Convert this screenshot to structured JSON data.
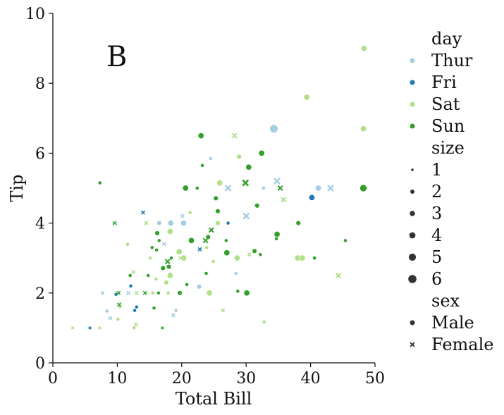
{
  "chart_data": {
    "type": "scatter",
    "panel_label": "B",
    "xlabel": "Total Bill",
    "ylabel": "Tip",
    "xlim": [
      0,
      50
    ],
    "ylim": [
      0,
      10
    ],
    "xticks": [
      "0",
      "10",
      "20",
      "30",
      "40",
      "50"
    ],
    "yticks": [
      "0",
      "2",
      "4",
      "6",
      "8",
      "10"
    ],
    "legend": {
      "placement": "right-outside",
      "hue_title": "day",
      "hue": [
        {
          "label": "Thur",
          "color": "#a6cee3"
        },
        {
          "label": "Fri",
          "color": "#1f78b4"
        },
        {
          "label": "Sat",
          "color": "#b2df8a"
        },
        {
          "label": "Sun",
          "color": "#33a02c"
        }
      ],
      "size_title": "size",
      "sizes": [
        "1",
        "2",
        "3",
        "4",
        "5",
        "6"
      ],
      "style_title": "sex",
      "styles": [
        {
          "label": "Male",
          "marker": "circle"
        },
        {
          "label": "Female",
          "marker": "x"
        }
      ]
    },
    "points": [
      {
        "x": 48.3,
        "y": 9.0,
        "day": "Sat",
        "size": 4,
        "sex": "Male"
      },
      {
        "x": 39.4,
        "y": 7.6,
        "day": "Sat",
        "size": 4,
        "sex": "Male"
      },
      {
        "x": 48.2,
        "y": 6.7,
        "day": "Sat",
        "size": 4,
        "sex": "Male"
      },
      {
        "x": 34.3,
        "y": 6.7,
        "day": "Thur",
        "size": 6,
        "sex": "Male"
      },
      {
        "x": 23.0,
        "y": 6.5,
        "day": "Sun",
        "size": 4,
        "sex": "Male"
      },
      {
        "x": 28.2,
        "y": 6.5,
        "day": "Sat",
        "size": 3,
        "sex": "Female"
      },
      {
        "x": 32.4,
        "y": 6.0,
        "day": "Sun",
        "size": 4,
        "sex": "Male"
      },
      {
        "x": 28.9,
        "y": 5.9,
        "day": "Sat",
        "size": 3,
        "sex": "Male"
      },
      {
        "x": 24.5,
        "y": 5.85,
        "day": "Thur",
        "size": 2,
        "sex": "Male"
      },
      {
        "x": 23.2,
        "y": 5.65,
        "day": "Sun",
        "size": 2,
        "sex": "Male"
      },
      {
        "x": 30.4,
        "y": 5.6,
        "day": "Sun",
        "size": 4,
        "sex": "Male"
      },
      {
        "x": 34.8,
        "y": 5.2,
        "day": "Thur",
        "size": 4,
        "sex": "Female"
      },
      {
        "x": 7.3,
        "y": 5.15,
        "day": "Sun",
        "size": 2,
        "sex": "Male"
      },
      {
        "x": 25.9,
        "y": 5.15,
        "day": "Sat",
        "size": 4,
        "sex": "Male"
      },
      {
        "x": 29.9,
        "y": 5.15,
        "day": "Sun",
        "size": 4,
        "sex": "Female"
      },
      {
        "x": 20.6,
        "y": 5.0,
        "day": "Sun",
        "size": 4,
        "sex": "Male"
      },
      {
        "x": 22.4,
        "y": 5.0,
        "day": "Sun",
        "size": 2,
        "sex": "Male"
      },
      {
        "x": 27.2,
        "y": 5.0,
        "day": "Thur",
        "size": 4,
        "sex": "Female"
      },
      {
        "x": 32.7,
        "y": 5.0,
        "day": "Thur",
        "size": 2,
        "sex": "Male"
      },
      {
        "x": 35.3,
        "y": 5.0,
        "day": "Sun",
        "size": 3,
        "sex": "Female"
      },
      {
        "x": 41.2,
        "y": 5.0,
        "day": "Thur",
        "size": 4,
        "sex": "Male"
      },
      {
        "x": 43.1,
        "y": 5.0,
        "day": "Thur",
        "size": 4,
        "sex": "Female"
      },
      {
        "x": 48.2,
        "y": 5.0,
        "day": "Sun",
        "size": 5,
        "sex": "Male"
      },
      {
        "x": 40.2,
        "y": 4.73,
        "day": "Fri",
        "size": 4,
        "sex": "Male"
      },
      {
        "x": 25.3,
        "y": 4.71,
        "day": "Sun",
        "size": 3,
        "sex": "Male"
      },
      {
        "x": 35.8,
        "y": 4.67,
        "day": "Sat",
        "size": 3,
        "sex": "Female"
      },
      {
        "x": 31.7,
        "y": 4.5,
        "day": "Sun",
        "size": 3,
        "sex": "Male"
      },
      {
        "x": 25.6,
        "y": 4.34,
        "day": "Sun",
        "size": 3,
        "sex": "Male"
      },
      {
        "x": 14.0,
        "y": 4.3,
        "day": "Fri",
        "size": 2,
        "sex": "Female"
      },
      {
        "x": 21.3,
        "y": 4.3,
        "day": "Sat",
        "size": 2,
        "sex": "Male"
      },
      {
        "x": 30.0,
        "y": 4.2,
        "day": "Thur",
        "size": 4,
        "sex": "Female"
      },
      {
        "x": 20.1,
        "y": 4.2,
        "day": "Thur",
        "size": 2,
        "sex": "Female"
      },
      {
        "x": 9.6,
        "y": 4.0,
        "day": "Sun",
        "size": 2,
        "sex": "Female"
      },
      {
        "x": 14.5,
        "y": 4.0,
        "day": "Sat",
        "size": 2,
        "sex": "Female"
      },
      {
        "x": 16.5,
        "y": 4.0,
        "day": "Thur",
        "size": 3,
        "sex": "Male"
      },
      {
        "x": 18.3,
        "y": 4.0,
        "day": "Thur",
        "size": 4,
        "sex": "Male"
      },
      {
        "x": 20.3,
        "y": 4.0,
        "day": "Thur",
        "size": 4,
        "sex": "Male"
      },
      {
        "x": 25.6,
        "y": 4.0,
        "day": "Sat",
        "size": 3,
        "sex": "Male"
      },
      {
        "x": 27.2,
        "y": 4.0,
        "day": "Fri",
        "size": 2,
        "sex": "Male"
      },
      {
        "x": 38.1,
        "y": 4.0,
        "day": "Sun",
        "size": 3,
        "sex": "Male"
      },
      {
        "x": 24.6,
        "y": 3.8,
        "day": "Sun",
        "size": 3,
        "sex": "Female"
      },
      {
        "x": 18.2,
        "y": 3.76,
        "day": "Sat",
        "size": 4,
        "sex": "Male"
      },
      {
        "x": 16.2,
        "y": 3.71,
        "day": "Sun",
        "size": 3,
        "sex": "Male"
      },
      {
        "x": 34.8,
        "y": 3.68,
        "day": "Sun",
        "size": 4,
        "sex": "Male"
      },
      {
        "x": 24.1,
        "y": 3.6,
        "day": "Sun",
        "size": 3,
        "sex": "Male"
      },
      {
        "x": 34.7,
        "y": 3.55,
        "day": "Sun",
        "size": 2,
        "sex": "Male"
      },
      {
        "x": 23.7,
        "y": 3.5,
        "day": "Sun",
        "size": 3,
        "sex": "Female"
      },
      {
        "x": 16.5,
        "y": 3.5,
        "day": "Sun",
        "size": 2,
        "sex": "Male"
      },
      {
        "x": 21.5,
        "y": 3.5,
        "day": "Sun",
        "size": 4,
        "sex": "Male"
      },
      {
        "x": 26.9,
        "y": 3.5,
        "day": "Sun",
        "size": 2,
        "sex": "Male"
      },
      {
        "x": 45.4,
        "y": 3.5,
        "day": "Sun",
        "size": 2,
        "sex": "Male"
      },
      {
        "x": 17.3,
        "y": 3.4,
        "day": "Thur",
        "size": 2,
        "sex": "Female"
      },
      {
        "x": 11.6,
        "y": 3.39,
        "day": "Sat",
        "size": 2,
        "sex": "Male"
      },
      {
        "x": 15.4,
        "y": 3.3,
        "day": "Sun",
        "size": 2,
        "sex": "Male"
      },
      {
        "x": 23.9,
        "y": 3.3,
        "day": "Sat",
        "size": 2,
        "sex": "Male"
      },
      {
        "x": 22.8,
        "y": 3.25,
        "day": "Fri",
        "size": 2,
        "sex": "Female"
      },
      {
        "x": 16.1,
        "y": 3.23,
        "day": "Sun",
        "size": 2,
        "sex": "Male"
      },
      {
        "x": 31.3,
        "y": 3.2,
        "day": "Sun",
        "size": 3,
        "sex": "Male"
      },
      {
        "x": 19.6,
        "y": 3.18,
        "day": "Sat",
        "size": 4,
        "sex": "Male"
      },
      {
        "x": 27.0,
        "y": 3.15,
        "day": "Sun",
        "size": 4,
        "sex": "Male"
      },
      {
        "x": 30.5,
        "y": 3.1,
        "day": "Sat",
        "size": 2,
        "sex": "Female"
      },
      {
        "x": 32.2,
        "y": 3.1,
        "day": "Sun",
        "size": 2,
        "sex": "Male"
      },
      {
        "x": 18.4,
        "y": 3.0,
        "day": "Sun",
        "size": 2,
        "sex": "Male"
      },
      {
        "x": 19.8,
        "y": 3.0,
        "day": "Sat",
        "size": 2,
        "sex": "Female"
      },
      {
        "x": 20.3,
        "y": 3.0,
        "day": "Sat",
        "size": 4,
        "sex": "Male"
      },
      {
        "x": 15.1,
        "y": 3.0,
        "day": "Sat",
        "size": 2,
        "sex": "Male"
      },
      {
        "x": 28.6,
        "y": 3.0,
        "day": "Sat",
        "size": 4,
        "sex": "Male"
      },
      {
        "x": 38.0,
        "y": 3.0,
        "day": "Sat",
        "size": 4,
        "sex": "Male"
      },
      {
        "x": 38.7,
        "y": 3.0,
        "day": "Sat",
        "size": 4,
        "sex": "Male"
      },
      {
        "x": 40.6,
        "y": 3.0,
        "day": "Sun",
        "size": 2,
        "sex": "Male"
      },
      {
        "x": 17.8,
        "y": 2.9,
        "day": "Sun",
        "size": 3,
        "sex": "Female"
      },
      {
        "x": 24.9,
        "y": 2.9,
        "day": "Sat",
        "size": 2,
        "sex": "Male"
      },
      {
        "x": 18.0,
        "y": 2.75,
        "day": "Sun",
        "size": 3,
        "sex": "Male"
      },
      {
        "x": 17.1,
        "y": 2.71,
        "day": "Sun",
        "size": 3,
        "sex": "Male"
      },
      {
        "x": 12.5,
        "y": 2.6,
        "day": "Sat",
        "size": 2,
        "sex": "Female"
      },
      {
        "x": 23.8,
        "y": 2.56,
        "day": "Sun",
        "size": 2,
        "sex": "Male"
      },
      {
        "x": 28.4,
        "y": 2.56,
        "day": "Thur",
        "size": 2,
        "sex": "Male"
      },
      {
        "x": 12.0,
        "y": 2.5,
        "day": "Sun",
        "size": 2,
        "sex": "Male"
      },
      {
        "x": 18.2,
        "y": 2.5,
        "day": "Sat",
        "size": 4,
        "sex": "Male"
      },
      {
        "x": 44.3,
        "y": 2.5,
        "day": "Sat",
        "size": 3,
        "sex": "Female"
      },
      {
        "x": 14.8,
        "y": 2.5,
        "day": "Sun",
        "size": 2,
        "sex": "Male"
      },
      {
        "x": 16.0,
        "y": 2.4,
        "day": "Sat",
        "size": 2,
        "sex": "Male"
      },
      {
        "x": 20.8,
        "y": 2.24,
        "day": "Sun",
        "size": 2,
        "sex": "Male"
      },
      {
        "x": 17.6,
        "y": 2.3,
        "day": "Sat",
        "size": 3,
        "sex": "Male"
      },
      {
        "x": 12.1,
        "y": 2.2,
        "day": "Fri",
        "size": 2,
        "sex": "Male"
      },
      {
        "x": 22.7,
        "y": 2.18,
        "day": "Thur",
        "size": 3,
        "sex": "Male"
      },
      {
        "x": 11.7,
        "y": 2.0,
        "day": "Thur",
        "size": 2,
        "sex": "Female"
      },
      {
        "x": 13.0,
        "y": 2.0,
        "day": "Sat",
        "size": 2,
        "sex": "Female"
      },
      {
        "x": 14.3,
        "y": 2.0,
        "day": "Sun",
        "size": 2,
        "sex": "Female"
      },
      {
        "x": 15.5,
        "y": 2.0,
        "day": "Sat",
        "size": 2,
        "sex": "Male"
      },
      {
        "x": 16.4,
        "y": 2.0,
        "day": "Sun",
        "size": 2,
        "sex": "Male"
      },
      {
        "x": 17.9,
        "y": 2.0,
        "day": "Sat",
        "size": 2,
        "sex": "Male"
      },
      {
        "x": 19.7,
        "y": 2.0,
        "day": "Sun",
        "size": 3,
        "sex": "Male"
      },
      {
        "x": 24.3,
        "y": 2.0,
        "day": "Sat",
        "size": 4,
        "sex": "Male"
      },
      {
        "x": 30.1,
        "y": 2.0,
        "day": "Sun",
        "size": 4,
        "sex": "Male"
      },
      {
        "x": 28.7,
        "y": 2.05,
        "day": "Sun",
        "size": 2,
        "sex": "Male"
      },
      {
        "x": 9.8,
        "y": 1.96,
        "day": "Fri",
        "size": 2,
        "sex": "Male"
      },
      {
        "x": 7.7,
        "y": 2.0,
        "day": "Thur",
        "size": 2,
        "sex": "Male"
      },
      {
        "x": 10.2,
        "y": 2.0,
        "day": "Sun",
        "size": 2,
        "sex": "Female"
      },
      {
        "x": 12.7,
        "y": 1.5,
        "day": "Fri",
        "size": 2,
        "sex": "Male"
      },
      {
        "x": 19.1,
        "y": 1.5,
        "day": "Thur",
        "size": 2,
        "sex": "Male"
      },
      {
        "x": 26.4,
        "y": 1.5,
        "day": "Sat",
        "size": 2,
        "sex": "Female"
      },
      {
        "x": 8.4,
        "y": 1.48,
        "day": "Thur",
        "size": 2,
        "sex": "Male"
      },
      {
        "x": 10.4,
        "y": 1.61,
        "day": "Sat",
        "size": 2,
        "sex": "Male"
      },
      {
        "x": 13.0,
        "y": 1.6,
        "day": "Fri",
        "size": 2,
        "sex": "Male"
      },
      {
        "x": 15.7,
        "y": 1.57,
        "day": "Sun",
        "size": 2,
        "sex": "Male"
      },
      {
        "x": 10.3,
        "y": 1.67,
        "day": "Sun",
        "size": 2,
        "sex": "Female"
      },
      {
        "x": 18.7,
        "y": 1.36,
        "day": "Thur",
        "size": 2,
        "sex": "Female"
      },
      {
        "x": 10.1,
        "y": 1.25,
        "day": "Sat",
        "size": 2,
        "sex": "Male"
      },
      {
        "x": 8.9,
        "y": 1.28,
        "day": "Thur",
        "size": 2,
        "sex": "Female"
      },
      {
        "x": 32.8,
        "y": 1.17,
        "day": "Sat",
        "size": 2,
        "sex": "Male"
      },
      {
        "x": 12.6,
        "y": 1.0,
        "day": "Sat",
        "size": 2,
        "sex": "Male"
      },
      {
        "x": 12.9,
        "y": 1.1,
        "day": "Sat",
        "size": 2,
        "sex": "Female"
      },
      {
        "x": 5.75,
        "y": 1.0,
        "day": "Fri",
        "size": 1,
        "sex": "Female"
      },
      {
        "x": 7.25,
        "y": 1.0,
        "day": "Sat",
        "size": 1,
        "sex": "Female"
      },
      {
        "x": 3.07,
        "y": 1.0,
        "day": "Sat",
        "size": 1,
        "sex": "Female"
      },
      {
        "x": 17.0,
        "y": 1.0,
        "day": "Sun",
        "size": 1,
        "sex": "Female"
      }
    ]
  }
}
